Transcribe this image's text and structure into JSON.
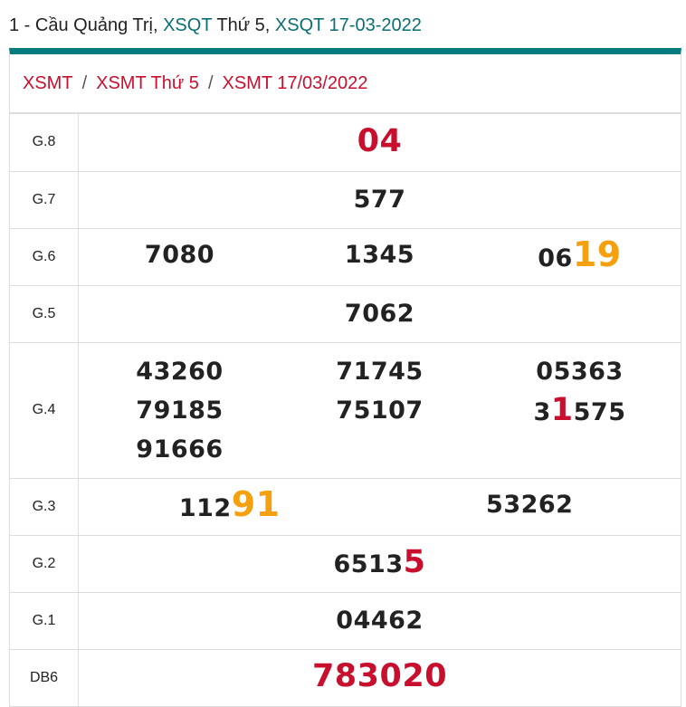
{
  "header": {
    "prefix": "1 - Cầu Quảng Trị, ",
    "link1": "XSQT",
    "mid": " Thứ 5, ",
    "link2": "XSQT 17-03-2022"
  },
  "breadcrumb": [
    "XSMT",
    "XSMT Thứ 5",
    "XSMT 17/03/2022"
  ],
  "breadcrumb_separator": "/",
  "colors": {
    "accent": "#057d80",
    "red": "#c8102e",
    "orange": "#f5a00f"
  },
  "prizes": [
    {
      "label": "G.8",
      "columns": [
        [
          [
            {
              "t": "04",
              "hl": "red"
            }
          ]
        ]
      ]
    },
    {
      "label": "G.7",
      "columns": [
        [
          [
            {
              "t": "577"
            }
          ]
        ]
      ]
    },
    {
      "label": "G.6",
      "columns": [
        [
          [
            {
              "t": "7080"
            }
          ]
        ],
        [
          [
            {
              "t": "1345"
            }
          ]
        ],
        [
          [
            {
              "t": "06"
            },
            {
              "t": "19",
              "hl": "orange"
            }
          ]
        ]
      ]
    },
    {
      "label": "G.5",
      "columns": [
        [
          [
            {
              "t": "7062"
            }
          ]
        ]
      ]
    },
    {
      "label": "G.4",
      "columns": [
        [
          [
            {
              "t": "43260"
            }
          ],
          [
            {
              "t": "79185"
            }
          ],
          [
            {
              "t": "91666"
            }
          ]
        ],
        [
          [
            {
              "t": "71745"
            }
          ],
          [
            {
              "t": "75107"
            }
          ]
        ],
        [
          [
            {
              "t": "05363"
            }
          ],
          [
            {
              "t": "3"
            },
            {
              "t": "1",
              "hl": "red"
            },
            {
              "t": "575"
            }
          ]
        ]
      ]
    },
    {
      "label": "G.3",
      "columns": [
        [
          [
            {
              "t": "112"
            },
            {
              "t": "91",
              "hl": "orange"
            }
          ]
        ],
        [
          [
            {
              "t": "53262"
            }
          ]
        ]
      ]
    },
    {
      "label": "G.2",
      "columns": [
        [
          [
            {
              "t": "6513"
            },
            {
              "t": "5",
              "hl": "red"
            }
          ]
        ]
      ]
    },
    {
      "label": "G.1",
      "columns": [
        [
          [
            {
              "t": "04462"
            }
          ]
        ]
      ]
    },
    {
      "label": "DB6",
      "columns": [
        [
          [
            {
              "t": "783020",
              "hl": "red"
            }
          ]
        ]
      ]
    }
  ]
}
